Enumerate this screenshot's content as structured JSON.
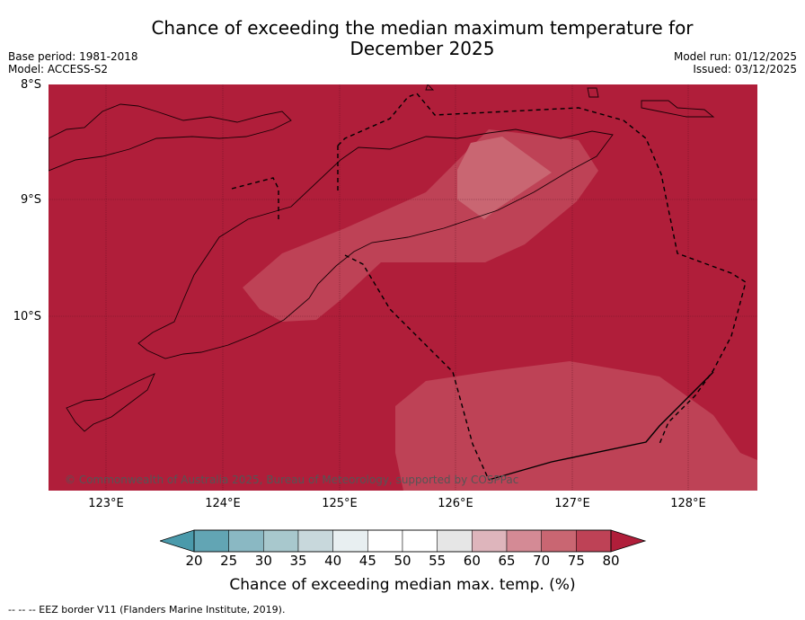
{
  "header": {
    "title_line1": "Chance of exceeding the median maximum temperature for",
    "title_line2": "December 2025",
    "base_period": "Base period: 1981-2018",
    "model": "Model: ACCESS-S2",
    "model_run": "Model run: 01/12/2025",
    "issued": "Issued: 03/12/2025"
  },
  "map": {
    "lat_labels": [
      "8°S",
      "9°S",
      "10°S"
    ],
    "lon_labels": [
      "123°E",
      "124°E",
      "125°E",
      "126°E",
      "127°E",
      "128°E"
    ],
    "credit": "© Commonwealth of Australia 2025, Bureau of Meteorology, supported by COSPPac",
    "background_color": "#b01e3a"
  },
  "colorbar": {
    "ticks": [
      "20",
      "25",
      "30",
      "35",
      "40",
      "45",
      "50",
      "55",
      "60",
      "65",
      "70",
      "75",
      "80"
    ],
    "colors": [
      "#62a5b4",
      "#8ab8c3",
      "#a8c8cd",
      "#c8d8dc",
      "#e8eff1",
      "#ffffff",
      "#ffffff",
      "#e6e6e6",
      "#deb5bc",
      "#d48a95",
      "#c96672",
      "#be4256"
    ],
    "low_extend_color": "#4a9aab",
    "high_extend_color": "#b01e3a",
    "label": "Chance of exceeding median max. temp. (%)"
  },
  "footnote": "--  --  -- EEZ border V11 (Flanders Marine Institute, 2019)."
}
